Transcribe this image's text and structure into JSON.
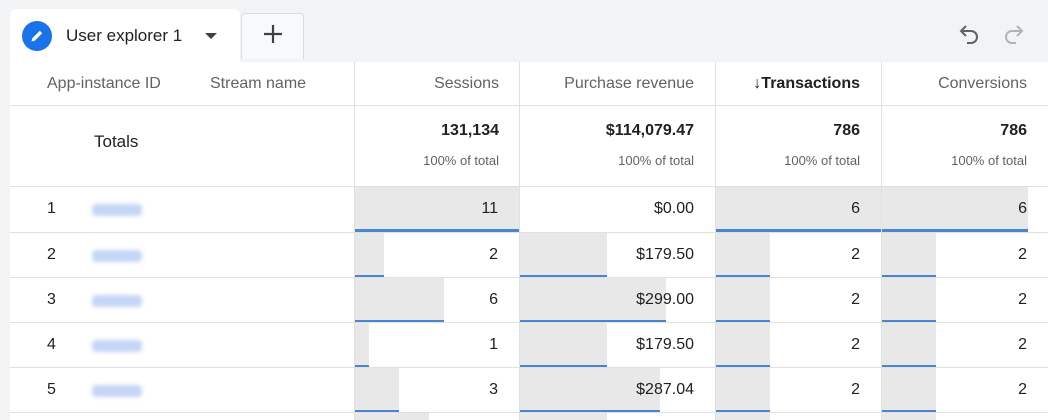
{
  "tabs": {
    "active_label": "User explorer 1",
    "edit_icon": "pencil-icon",
    "caret_icon": "caret-down-icon",
    "add_icon": "plus-icon"
  },
  "toolbar": {
    "undo_icon": "undo-icon",
    "redo_icon": "redo-icon"
  },
  "columns": {
    "app_instance_id": "App-instance ID",
    "stream_name": "Stream name",
    "sessions": "Sessions",
    "purchase_revenue": "Purchase revenue",
    "transactions": "↓Transactions",
    "conversions": "Conversions"
  },
  "totals": {
    "label": "Totals",
    "sessions": "131,134",
    "purchase_revenue": "$114,079.47",
    "transactions": "786",
    "conversions": "786",
    "pct_label": "100% of total"
  },
  "rows": [
    {
      "num": "1",
      "sessions": "11",
      "purchase_revenue": "$0.00",
      "transactions": "6",
      "conversions": "6"
    },
    {
      "num": "2",
      "sessions": "2",
      "purchase_revenue": "$179.50",
      "transactions": "2",
      "conversions": "2"
    },
    {
      "num": "3",
      "sessions": "6",
      "purchase_revenue": "$299.00",
      "transactions": "2",
      "conversions": "2"
    },
    {
      "num": "4",
      "sessions": "1",
      "purchase_revenue": "$179.50",
      "transactions": "2",
      "conversions": "2"
    },
    {
      "num": "5",
      "sessions": "3",
      "purchase_revenue": "$287.04",
      "transactions": "2",
      "conversions": "2"
    }
  ],
  "colors": {
    "accent": "#1a73e8",
    "bar_fill": "#e8e8e8",
    "bar_underline": "#4a86d0"
  }
}
